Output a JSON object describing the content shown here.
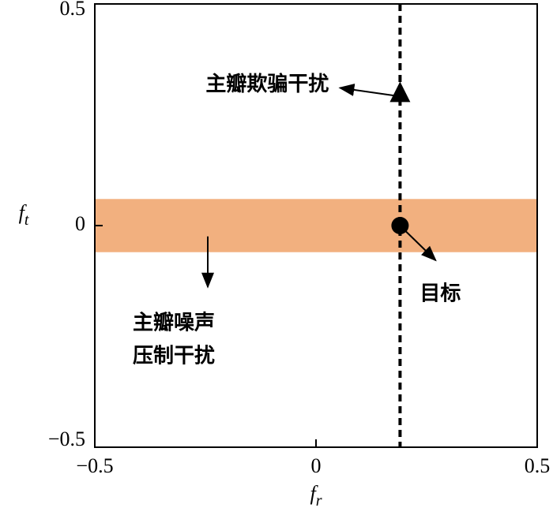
{
  "chart_data": {
    "type": "annotated",
    "xlim": [
      -0.5,
      0.5
    ],
    "ylim": [
      -0.5,
      0.5
    ],
    "xticks": [
      {
        "value": -0.5,
        "label": "−0.5"
      },
      0,
      0.5
    ],
    "yticks": [
      {
        "value": -0.5,
        "label": "−0.5"
      },
      0,
      0.5
    ],
    "xlabel": "fr",
    "ylabel": "ft",
    "band": {
      "ylim": [
        -0.06,
        0.06
      ],
      "color": "#f2b07f",
      "label": [
        "主瓣噪声",
        "压制干扰"
      ]
    },
    "line": {
      "x": 0.19,
      "color": "#000000"
    },
    "target": {
      "x": 0.19,
      "y": 0,
      "label": "目标"
    },
    "decoy": {
      "x": 0.19,
      "y": 0.3,
      "label": "主瓣欺骗干扰"
    }
  }
}
